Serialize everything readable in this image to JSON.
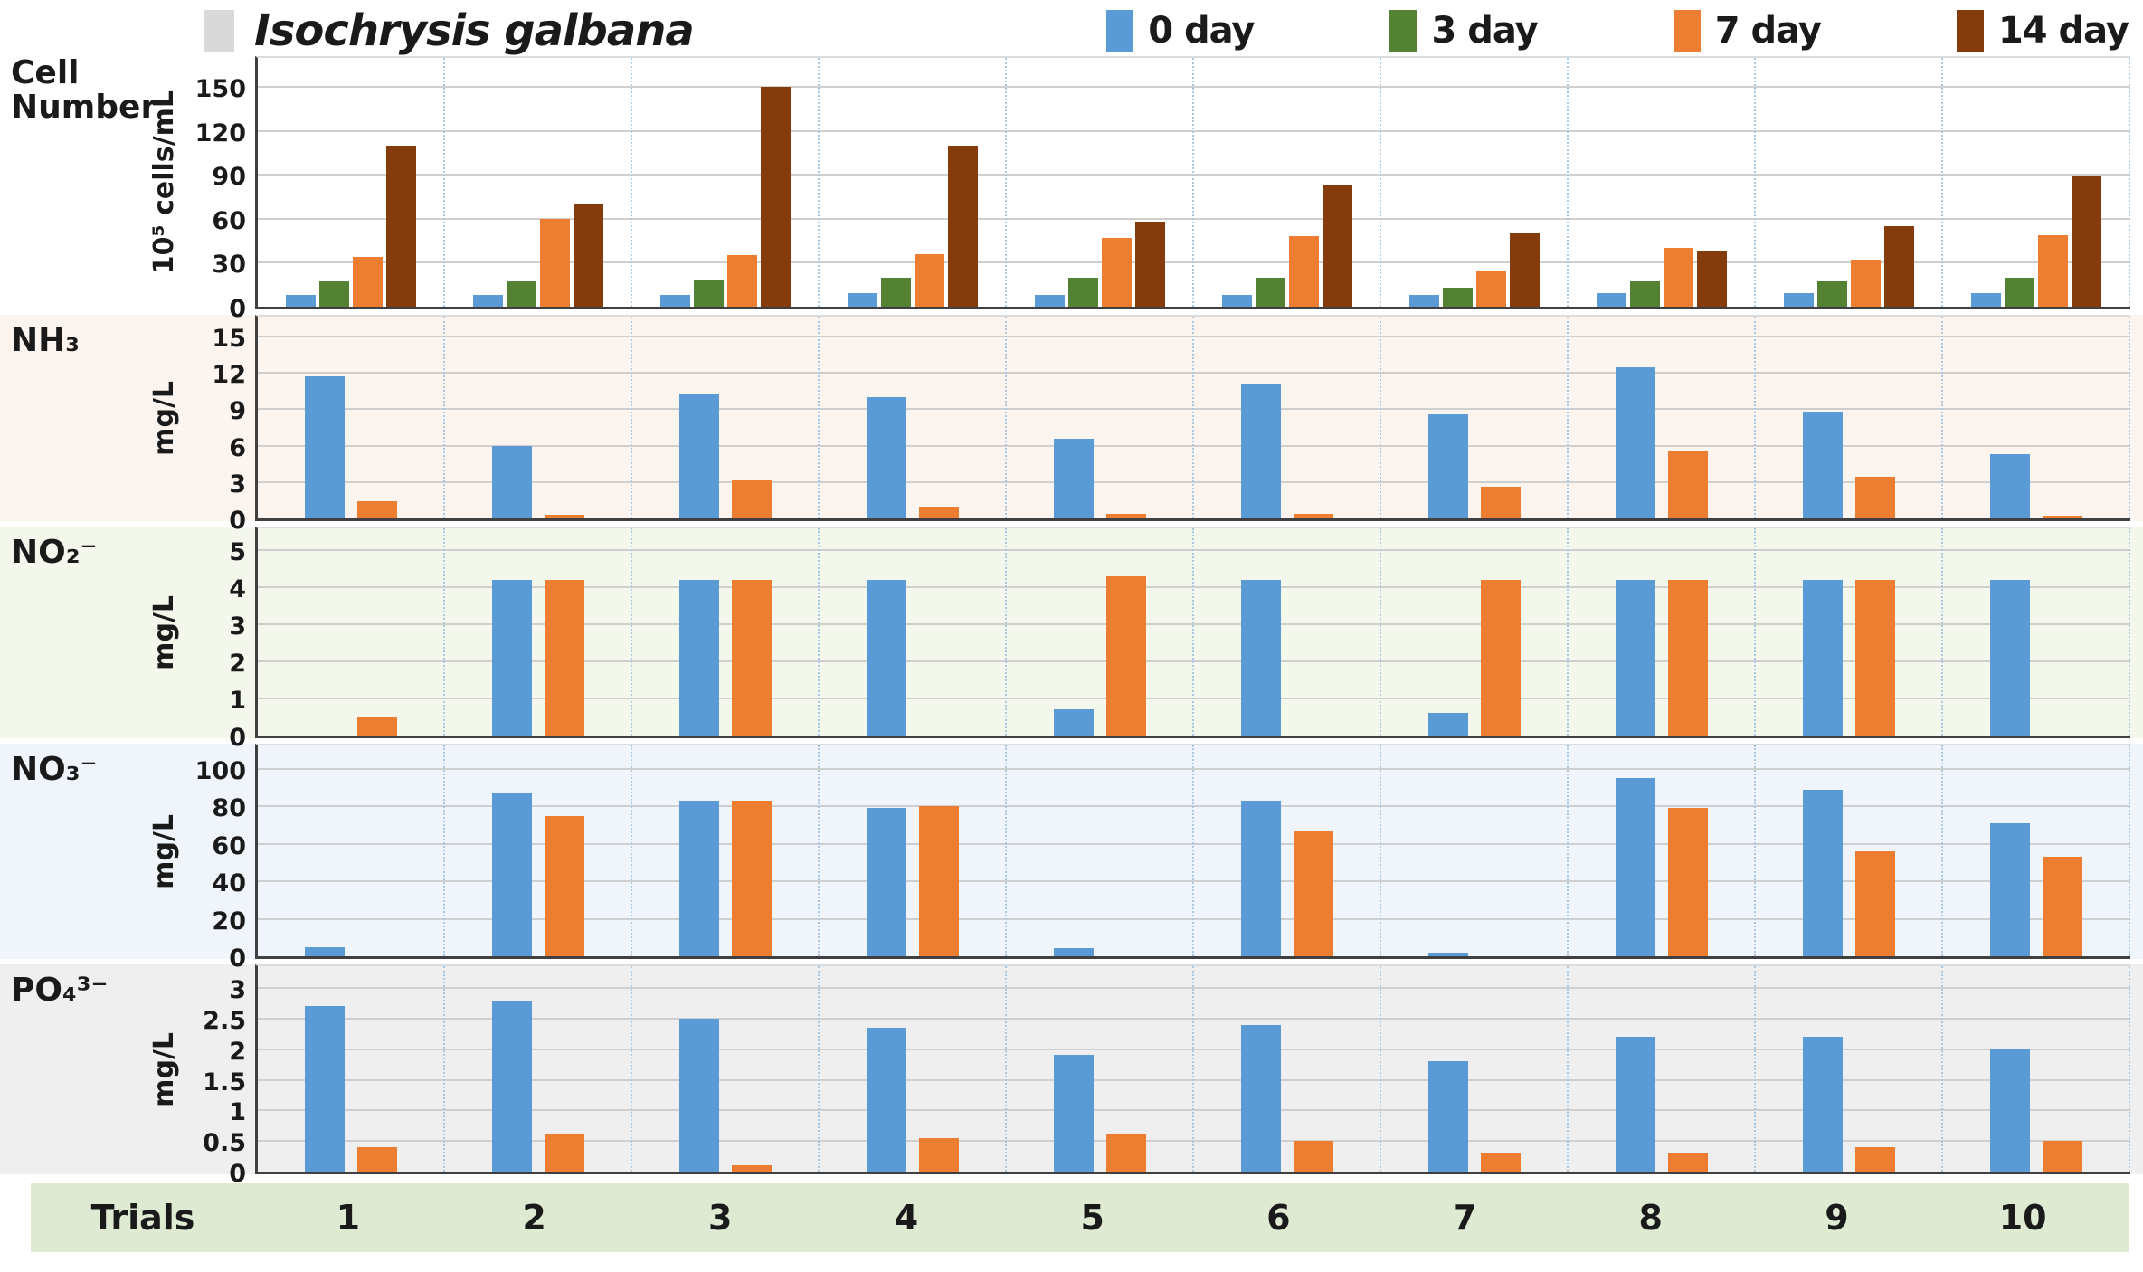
{
  "legend": {
    "title": "Isochrysis galbana",
    "title_swatch_color": "#D9D9D9",
    "items": [
      {
        "label": "0 day",
        "color": "#5B9BD5"
      },
      {
        "label": "3 day",
        "color": "#548235"
      },
      {
        "label": "7 day",
        "color": "#ED7D31"
      },
      {
        "label": "14 day",
        "color": "#843C0C"
      }
    ]
  },
  "trials_row": {
    "label": "Trials",
    "values": [
      "1",
      "2",
      "3",
      "4",
      "5",
      "6",
      "7",
      "8",
      "9",
      "10"
    ]
  },
  "chart_data": [
    {
      "type": "bar",
      "panel": "cell_number",
      "title": "Cell Number",
      "ylabel": "10⁵ cells/mL",
      "ylim": [
        0,
        150
      ],
      "yticks": [
        0,
        30,
        60,
        90,
        120,
        150
      ],
      "categories": [
        "1",
        "2",
        "3",
        "4",
        "5",
        "6",
        "7",
        "8",
        "9",
        "10"
      ],
      "series": [
        {
          "name": "0 day",
          "color": "#5B9BD5",
          "values": [
            8,
            8,
            8,
            9,
            8,
            8,
            8,
            9,
            9,
            9
          ]
        },
        {
          "name": "3 day",
          "color": "#548235",
          "values": [
            17,
            17,
            18,
            20,
            20,
            20,
            13,
            17,
            17,
            20
          ]
        },
        {
          "name": "7 day",
          "color": "#ED7D31",
          "values": [
            34,
            60,
            35,
            36,
            47,
            48,
            25,
            40,
            32,
            49
          ]
        },
        {
          "name": "14 day",
          "color": "#843C0C",
          "values": [
            110,
            70,
            150,
            110,
            58,
            83,
            50,
            38,
            55,
            89
          ]
        }
      ],
      "background": "#FFFFFF",
      "grid": true,
      "legend_position": "top"
    },
    {
      "type": "bar",
      "panel": "nh3",
      "title": "NH₃",
      "ylabel": "mg/L",
      "ylim": [
        0,
        15
      ],
      "yticks": [
        0,
        3,
        6,
        9,
        12,
        15
      ],
      "categories": [
        "1",
        "2",
        "3",
        "4",
        "5",
        "6",
        "7",
        "8",
        "9",
        "10"
      ],
      "series": [
        {
          "name": "0 day",
          "color": "#5B9BD5",
          "values": [
            11.7,
            6.0,
            10.3,
            10.0,
            6.6,
            11.1,
            8.6,
            12.5,
            8.8,
            5.3
          ]
        },
        {
          "name": "7 day",
          "color": "#ED7D31",
          "values": [
            1.4,
            0.3,
            3.1,
            1.0,
            0.4,
            0.4,
            2.6,
            5.6,
            3.4,
            0.2
          ]
        }
      ],
      "background": "#FCF4EE",
      "grid": true
    },
    {
      "type": "bar",
      "panel": "no2",
      "title": "NO₂⁻",
      "ylabel": "mg/L",
      "ylim": [
        0,
        5
      ],
      "yticks": [
        0,
        1,
        2,
        3,
        4,
        5
      ],
      "categories": [
        "1",
        "2",
        "3",
        "4",
        "5",
        "6",
        "7",
        "8",
        "9",
        "10"
      ],
      "series": [
        {
          "name": "0 day",
          "color": "#5B9BD5",
          "values": [
            0,
            4.2,
            4.2,
            4.2,
            0.7,
            4.2,
            0.6,
            4.2,
            4.2,
            4.2
          ]
        },
        {
          "name": "7 day",
          "color": "#ED7D31",
          "values": [
            0.5,
            4.2,
            4.2,
            0,
            4.3,
            0,
            4.2,
            4.2,
            4.2,
            0
          ]
        }
      ],
      "background": "#F3F7EC",
      "grid": true
    },
    {
      "type": "bar",
      "panel": "no3",
      "title": "NO₃⁻",
      "ylabel": "mg/L",
      "ylim": [
        0,
        100
      ],
      "yticks": [
        0,
        20,
        40,
        60,
        80,
        100
      ],
      "categories": [
        "1",
        "2",
        "3",
        "4",
        "5",
        "6",
        "7",
        "8",
        "9",
        "10"
      ],
      "series": [
        {
          "name": "0 day",
          "color": "#5B9BD5",
          "values": [
            5,
            87,
            83,
            79,
            4.5,
            83,
            2,
            95,
            89,
            71
          ]
        },
        {
          "name": "7 day",
          "color": "#ED7D31",
          "values": [
            0,
            75,
            83,
            80,
            0,
            67,
            0,
            79,
            56,
            53
          ]
        }
      ],
      "background": "#EFF5FA",
      "grid": true
    },
    {
      "type": "bar",
      "panel": "po4",
      "title": "PO₄³⁻",
      "ylabel": "mg/L",
      "ylim": [
        0,
        3
      ],
      "yticks": [
        0,
        0.5,
        1,
        1.5,
        2,
        2.5,
        3
      ],
      "categories": [
        "1",
        "2",
        "3",
        "4",
        "5",
        "6",
        "7",
        "8",
        "9",
        "10"
      ],
      "series": [
        {
          "name": "0 day",
          "color": "#5B9BD5",
          "values": [
            2.7,
            2.8,
            2.5,
            2.35,
            1.9,
            2.4,
            1.8,
            2.2,
            2.2,
            2.0
          ]
        },
        {
          "name": "7 day",
          "color": "#ED7D31",
          "values": [
            0.4,
            0.6,
            0.1,
            0.55,
            0.6,
            0.5,
            0.3,
            0.3,
            0.4,
            0.5
          ]
        }
      ],
      "background": "#EFEFEF",
      "grid": true
    }
  ]
}
